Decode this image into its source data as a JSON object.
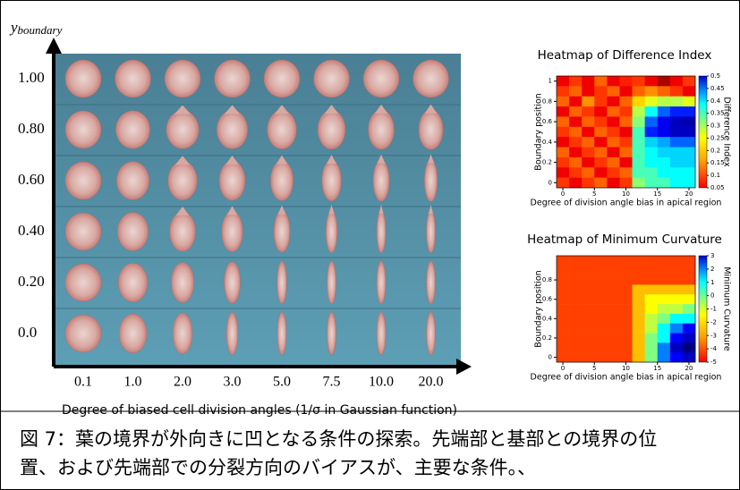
{
  "figure": {
    "y_axis_label": {
      "symbol": "y",
      "subscript": "boundary"
    },
    "row_labels": [
      "1.00",
      "0.80",
      "0.60",
      "0.40",
      "0.20",
      "0.0"
    ],
    "column_labels": [
      "0.1",
      "1.0",
      "2.0",
      "3.0",
      "5.0",
      "7.5",
      "10.0",
      "20.0"
    ],
    "x_axis_label": "Degree of biased cell division angles (1/σ in Gaussian function)"
  },
  "heatmaps": [
    {
      "type": "heatmap",
      "title": "Heatmap of Difference Index",
      "x_label": "Degree of division angle bias in apical region",
      "y_label": "Boundary position",
      "colorbar_label": "Difference Index",
      "x": [
        0,
        2,
        4,
        6,
        8,
        10,
        12,
        14,
        16,
        18,
        20
      ],
      "y": [
        1,
        0.9,
        0.8,
        0.7,
        0.6,
        0.5,
        0.4,
        0.3,
        0.2,
        0.1,
        0
      ],
      "xlim": [
        -1,
        21
      ],
      "ylim": [
        -0.05,
        1.05
      ],
      "xticks": [
        0,
        5,
        10,
        15,
        20
      ],
      "yticks": [
        0,
        0.2,
        0.4,
        0.6,
        0.8,
        1
      ],
      "clim": [
        0.05,
        0.5
      ],
      "colorbar_ticks": [
        0.05,
        0.1,
        0.15,
        0.2,
        0.25,
        0.3,
        0.35,
        0.4,
        0.45,
        0.5
      ],
      "values": [
        [
          0.45,
          0.42,
          0.45,
          0.4,
          0.45,
          0.43,
          0.42,
          0.45,
          0.48,
          0.45,
          0.42
        ],
        [
          0.42,
          0.4,
          0.45,
          0.42,
          0.4,
          0.45,
          0.4,
          0.38,
          0.4,
          0.42,
          0.45
        ],
        [
          0.4,
          0.45,
          0.38,
          0.42,
          0.45,
          0.4,
          0.35,
          0.32,
          0.3,
          0.3,
          0.32
        ],
        [
          0.45,
          0.4,
          0.42,
          0.45,
          0.4,
          0.42,
          0.3,
          0.22,
          0.15,
          0.12,
          0.12
        ],
        [
          0.4,
          0.45,
          0.4,
          0.42,
          0.45,
          0.4,
          0.28,
          0.15,
          0.1,
          0.08,
          0.07
        ],
        [
          0.42,
          0.4,
          0.45,
          0.4,
          0.42,
          0.45,
          0.25,
          0.12,
          0.1,
          0.08,
          0.08
        ],
        [
          0.45,
          0.42,
          0.4,
          0.45,
          0.4,
          0.42,
          0.25,
          0.2,
          0.18,
          0.15,
          0.15
        ],
        [
          0.4,
          0.45,
          0.42,
          0.4,
          0.45,
          0.4,
          0.25,
          0.22,
          0.2,
          0.2,
          0.2
        ],
        [
          0.42,
          0.4,
          0.45,
          0.42,
          0.4,
          0.45,
          0.25,
          0.22,
          0.22,
          0.2,
          0.2
        ],
        [
          0.45,
          0.42,
          0.4,
          0.45,
          0.42,
          0.4,
          0.25,
          0.25,
          0.22,
          0.22,
          0.22
        ],
        [
          0.42,
          0.45,
          0.42,
          0.4,
          0.45,
          0.42,
          0.28,
          0.25,
          0.25,
          0.22,
          0.22
        ]
      ]
    },
    {
      "type": "heatmap",
      "title": "Heatmap of Minimum Curvature",
      "x_label": "Degree of division angle bias in apical region",
      "y_label": "Boundary position",
      "colorbar_label": "Minimum Curvature",
      "x": [
        0,
        2,
        4,
        6,
        8,
        10,
        12,
        14,
        16,
        18,
        20
      ],
      "y": [
        1,
        0.9,
        0.8,
        0.7,
        0.6,
        0.5,
        0.4,
        0.3,
        0.2,
        0.1,
        0
      ],
      "xlim": [
        -1,
        21
      ],
      "ylim": [
        -0.05,
        1.05
      ],
      "xticks": [
        0,
        5,
        10,
        15,
        20
      ],
      "yticks": [
        0,
        0.2,
        0.4,
        0.6,
        0.8
      ],
      "clim": [
        -5,
        3
      ],
      "colorbar_ticks": [
        3,
        2,
        1,
        0,
        -1,
        -2,
        -3,
        -4,
        -5
      ],
      "values": [
        [
          1.5,
          1.5,
          1.5,
          1.5,
          1.5,
          1.5,
          1.5,
          1.5,
          1.5,
          1.5,
          1.5
        ],
        [
          1.5,
          1.5,
          1.5,
          1.5,
          1.5,
          1.5,
          1.5,
          1.5,
          1.5,
          1.5,
          1.5
        ],
        [
          1.5,
          1.5,
          1.5,
          1.5,
          1.5,
          1.5,
          1.5,
          1.5,
          1.5,
          1.5,
          1.5
        ],
        [
          1.5,
          1.5,
          1.5,
          1.5,
          1.5,
          1.5,
          0.5,
          0.5,
          0.5,
          0.5,
          0.5
        ],
        [
          1.5,
          1.5,
          1.5,
          1.5,
          1.5,
          1.5,
          0.5,
          0,
          0,
          0,
          0
        ],
        [
          1.5,
          1.5,
          1.5,
          1.5,
          1.5,
          1.5,
          0.5,
          0,
          -0.5,
          -0.5,
          -1
        ],
        [
          1.5,
          1.5,
          1.5,
          1.5,
          1.5,
          1.5,
          0.5,
          -0.5,
          -1,
          -2,
          -2
        ],
        [
          1.5,
          1.5,
          1.5,
          1.5,
          1.5,
          1.5,
          0.5,
          -0.5,
          -2,
          -3,
          -4
        ],
        [
          1.5,
          1.5,
          1.5,
          1.5,
          1.5,
          1.5,
          0.5,
          -1,
          -2,
          -4,
          -4.5
        ],
        [
          1.5,
          1.5,
          1.5,
          1.5,
          1.5,
          1.5,
          0.5,
          -1,
          -3,
          -4.5,
          -5
        ],
        [
          1.5,
          1.5,
          1.5,
          1.5,
          1.5,
          1.5,
          0.5,
          -1,
          -3,
          -4,
          -4.5
        ]
      ]
    }
  ],
  "caption": {
    "lines": [
      "図 7：葉の境界が外向きに凹となる条件の探索。先端部と基部との境界の位",
      "置、および先端部での分裂方向のバイアスが、主要な条件。、"
    ]
  }
}
